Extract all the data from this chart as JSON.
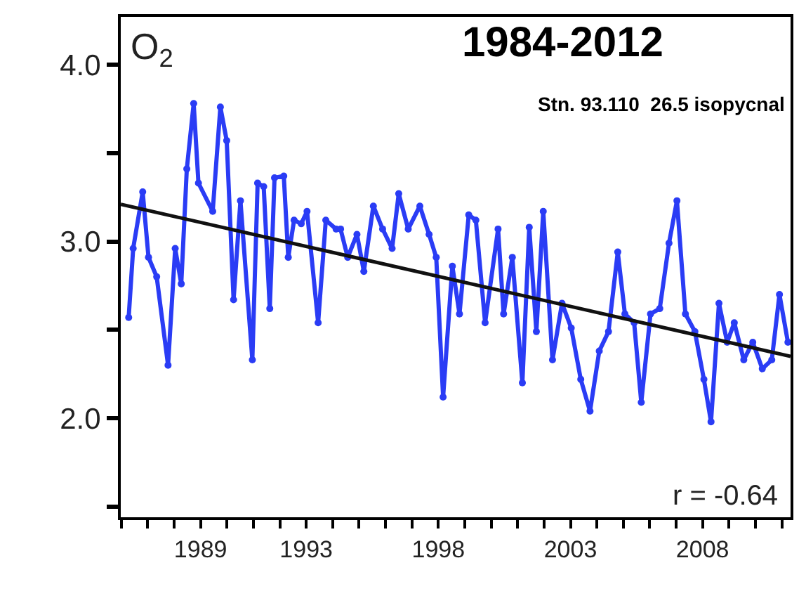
{
  "chart_data": {
    "type": "line",
    "title": "1984-2012",
    "subtitle": "Stn. 93.110  26.5 isopycnal",
    "annotations": [
      "O$_{2}$",
      "r = -0.64"
    ],
    "xlim": [
      1985.98,
      2011.33
    ],
    "xticks": [
      {
        "value": 1986,
        "label": null
      },
      {
        "value": 1987,
        "label": null
      },
      {
        "value": 1988,
        "label": null
      },
      1989,
      {
        "value": 1990,
        "label": null
      },
      {
        "value": 1991,
        "label": null
      },
      {
        "value": 1992,
        "label": null
      },
      1993,
      {
        "value": 1994,
        "label": null
      },
      {
        "value": 1995,
        "label": null
      },
      {
        "value": 1996,
        "label": null
      },
      {
        "value": 1997,
        "label": null
      },
      1998,
      {
        "value": 1999,
        "label": null
      },
      {
        "value": 2000,
        "label": null
      },
      {
        "value": 2001,
        "label": null
      },
      {
        "value": 2002,
        "label": null
      },
      2003,
      {
        "value": 2004,
        "label": null
      },
      {
        "value": 2005,
        "label": null
      },
      {
        "value": 2006,
        "label": null
      },
      {
        "value": 2007,
        "label": null
      },
      2008,
      {
        "value": 2009,
        "label": null
      },
      {
        "value": 2010,
        "label": null
      },
      {
        "value": 2011,
        "label": null
      }
    ],
    "ylim": [
      1.44,
      4.27
    ],
    "yticks": [
      {
        "value": 1.5,
        "label": null
      },
      {
        "value": 2,
        "label": "2.0"
      },
      {
        "value": 2.5,
        "label": null
      },
      {
        "value": 3,
        "label": "3.0"
      },
      {
        "value": 3.5,
        "label": null
      },
      {
        "value": 4,
        "label": "4.0"
      }
    ],
    "series": [
      {
        "color": "#2a3cf5",
        "marker": "circle",
        "line_style": "solid",
        "x": [
          1986.28,
          1986.45,
          1986.81,
          1987.03,
          1987.34,
          1987.77,
          1988.04,
          1988.27,
          1988.48,
          1988.74,
          1988.92,
          1989.46,
          1989.75,
          1989.99,
          1990.25,
          1990.51,
          1990.96,
          1991.16,
          1991.39,
          1991.62,
          1991.8,
          1992.15,
          1992.32,
          1992.54,
          1992.81,
          1993.03,
          1993.45,
          1993.74,
          1994.13,
          1994.3,
          1994.57,
          1994.92,
          1995.18,
          1995.54,
          1995.89,
          1996.25,
          1996.5,
          1996.86,
          1997.3,
          1997.65,
          1997.92,
          1998.18,
          1998.53,
          1998.8,
          1999.15,
          1999.42,
          1999.77,
          2000.26,
          2000.47,
          2000.8,
          2001.18,
          2001.44,
          2001.71,
          2001.97,
          2002.32,
          2002.68,
          2003.03,
          2003.39,
          2003.74,
          2004.09,
          2004.44,
          2004.79,
          2005.06,
          2005.41,
          2005.68,
          2006.03,
          2006.38,
          2006.73,
          2007.03,
          2007.35,
          2007.71,
          2008.05,
          2008.32,
          2008.62,
          2008.93,
          2009.2,
          2009.56,
          2009.9,
          2010.26,
          2010.62,
          2010.91,
          2011.23
        ],
        "values": [
          2.57,
          2.96,
          3.28,
          2.91,
          2.8,
          2.3,
          2.96,
          2.76,
          3.41,
          3.78,
          3.33,
          3.17,
          3.76,
          3.57,
          2.67,
          3.23,
          2.33,
          3.33,
          3.31,
          2.62,
          3.36,
          3.37,
          2.91,
          3.12,
          3.1,
          3.17,
          2.54,
          3.12,
          3.07,
          3.07,
          2.91,
          3.04,
          2.83,
          3.2,
          3.07,
          2.96,
          3.27,
          3.07,
          3.2,
          3.04,
          2.91,
          2.12,
          2.86,
          2.59,
          3.15,
          3.12,
          2.54,
          3.07,
          2.59,
          2.91,
          2.2,
          3.08,
          2.49,
          3.17,
          2.33,
          2.65,
          2.51,
          2.22,
          2.04,
          2.38,
          2.49,
          2.94,
          2.59,
          2.54,
          2.09,
          2.59,
          2.62,
          2.99,
          3.23,
          2.59,
          2.49,
          2.22,
          1.98,
          2.65,
          2.43,
          2.54,
          2.33,
          2.43,
          2.28,
          2.33,
          2.7,
          2.43
        ]
      },
      {
        "color": "#111111",
        "marker": "none",
        "line_style": "solid",
        "x": [
          1985.98,
          2011.33
        ],
        "values": [
          3.21,
          2.35
        ]
      }
    ]
  }
}
